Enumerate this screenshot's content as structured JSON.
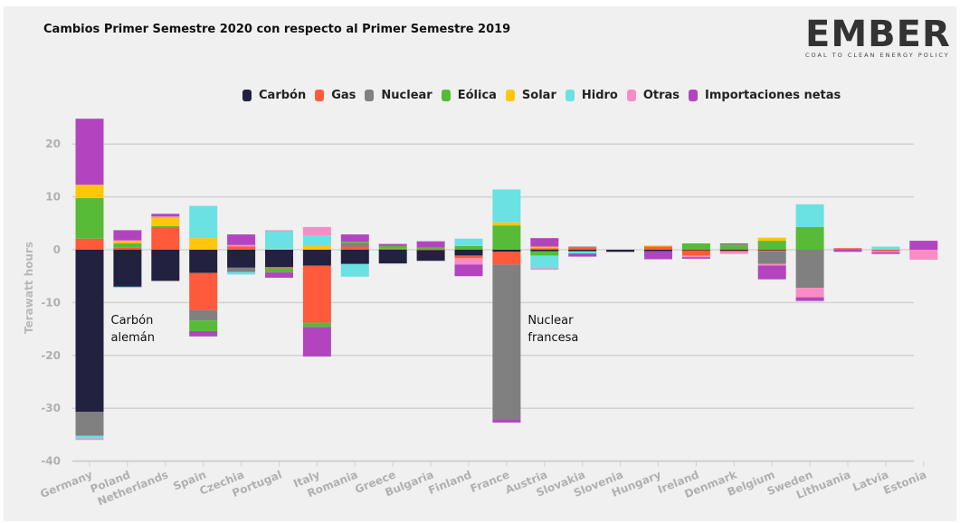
{
  "logo": {
    "word": "EMBER",
    "tagline": "COAL TO CLEAN ENERGY POLICY"
  },
  "chart_data": {
    "type": "bar",
    "stacked": true,
    "title": "Cambios Primer Semestre 2020 con respecto al Primer Semestre 2019",
    "xlabel": "",
    "ylabel": "Terawatt hours",
    "ylim": [
      -40,
      25
    ],
    "yticks": [
      20,
      10,
      0,
      -10,
      -20,
      -30,
      -40
    ],
    "grid": true,
    "legend_position": "top-center",
    "categories": [
      "Germany",
      "Poland",
      "Netherlands",
      "Spain",
      "Czechia",
      "Portugal",
      "Italy",
      "Romania",
      "Greece",
      "Bulgaria",
      "Finland",
      "France",
      "Austria",
      "Slovakia",
      "Slovenia",
      "Hungary",
      "Ireland",
      "Denmark",
      "Belgium",
      "Sweden",
      "Lithuania",
      "Latvia",
      "Estonia"
    ],
    "series": [
      {
        "name": "Carbón",
        "color": "#22213f",
        "values": [
          -30.7,
          -7.0,
          -5.9,
          -4.4,
          -3.4,
          -3.3,
          -3.0,
          -2.7,
          -2.6,
          -2.1,
          -1.1,
          -0.4,
          -0.3,
          -0.3,
          -0.4,
          -0.3,
          -0.1,
          -0.2,
          -0.1,
          0,
          0,
          0,
          0
        ]
      },
      {
        "name": "Gas",
        "color": "#ff5a3c",
        "values": [
          2.1,
          0.4,
          4.2,
          -7.0,
          0.6,
          -0.2,
          -10.8,
          0.6,
          0.2,
          0.1,
          -0.5,
          -2.4,
          0.3,
          0.4,
          0,
          0.6,
          -1.0,
          -0.2,
          -0.2,
          0,
          0.3,
          -0.3,
          0
        ]
      },
      {
        "name": "Nuclear",
        "color": "#808080",
        "values": [
          -4.5,
          0,
          0,
          -2.0,
          -0.8,
          0,
          0,
          0.6,
          0,
          0,
          0,
          -29.3,
          0,
          0.2,
          0,
          0,
          0,
          0,
          -2.4,
          -7.2,
          0,
          0,
          0
        ]
      },
      {
        "name": "Eólica",
        "color": "#58bb38",
        "values": [
          7.7,
          0.8,
          0.3,
          -2.0,
          0,
          -0.8,
          -0.8,
          0.3,
          0.5,
          0.3,
          0.7,
          4.6,
          -0.8,
          0,
          0,
          0,
          1.2,
          1.0,
          1.7,
          4.3,
          0,
          0,
          0
        ]
      },
      {
        "name": "Solar",
        "color": "#ffc60a",
        "values": [
          2.5,
          0.5,
          1.5,
          2.2,
          0,
          0.2,
          0.7,
          0,
          0,
          0,
          0,
          0.6,
          0.3,
          0,
          0,
          0.2,
          0,
          0,
          0.6,
          0,
          0,
          0,
          0
        ]
      },
      {
        "name": "Hidro",
        "color": "#6ae1e3",
        "values": [
          -0.5,
          -0.2,
          0,
          6.1,
          -0.5,
          3.3,
          2.0,
          -2.4,
          0,
          0,
          1.4,
          6.2,
          -2.4,
          -0.4,
          0,
          0,
          0,
          0,
          0,
          4.3,
          0,
          0.6,
          0
        ]
      },
      {
        "name": "Otras",
        "color": "#f78dc4",
        "values": [
          -0.3,
          0.1,
          0.3,
          0,
          0.3,
          0.2,
          1.6,
          0,
          0,
          0,
          -1.2,
          0,
          -0.3,
          0,
          0,
          0,
          -0.3,
          -0.4,
          -0.3,
          -1.8,
          0,
          -0.2,
          -1.9
        ]
      },
      {
        "name": "Importaciones netas",
        "color": "#b245bf",
        "values": [
          12.5,
          1.9,
          0.5,
          -1.0,
          2.0,
          -1.0,
          -5.6,
          1.4,
          0.4,
          1.2,
          -2.2,
          -0.6,
          1.6,
          -0.6,
          0,
          -1.5,
          -0.3,
          0.2,
          -2.6,
          -0.7,
          -0.4,
          -0.3,
          1.7
        ]
      }
    ],
    "annotations": [
      {
        "text_lines": [
          "Carbón",
          "alemán"
        ],
        "category": "Germany",
        "value": -14
      },
      {
        "text_lines": [
          "Nuclear",
          "francesa"
        ],
        "category": "France",
        "value": -14
      }
    ]
  }
}
